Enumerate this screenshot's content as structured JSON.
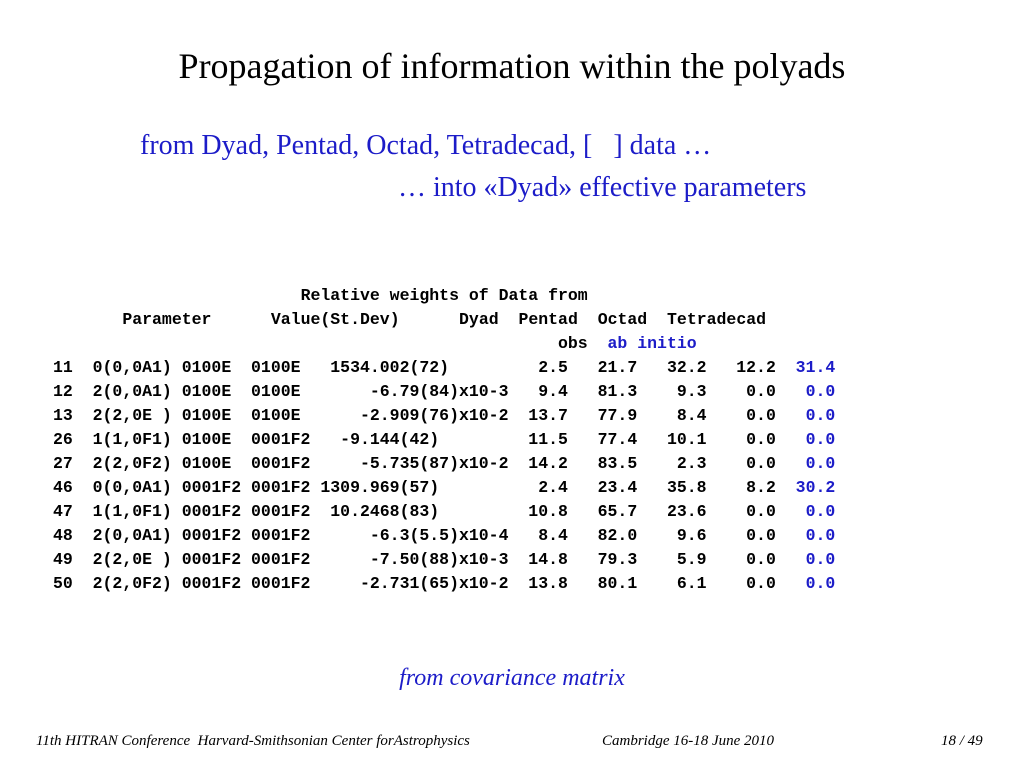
{
  "title": "Propagation of information within the polyads",
  "subtitle_line1": "from Dyad, Pentad, Octad, Tetradecad, [   ] data …",
  "subtitle_line2": "… into «Dyad» effective parameters",
  "table": {
    "header_line1": "Relative weights of Data from",
    "header_param": "Parameter",
    "header_value": "Value(St.Dev)",
    "columns": [
      "Dyad",
      "Pentad",
      "Octad",
      "Tetradecad"
    ],
    "obs_label": "obs",
    "abinitio_label": "ab initio",
    "rows": [
      {
        "num": "11",
        "param": "0(0,0A1) 0100E  0100E",
        "value": "1534.002(72)",
        "dyad": "2.5",
        "pentad": "21.7",
        "octad": "32.2",
        "obs": "12.2",
        "abinitio": "31.4"
      },
      {
        "num": "12",
        "param": "2(0,0A1) 0100E  0100E",
        "value": "-6.79(84)x10-3",
        "dyad": "9.4",
        "pentad": "81.3",
        "octad": "9.3",
        "obs": "0.0",
        "abinitio": "0.0"
      },
      {
        "num": "13",
        "param": "2(2,0E ) 0100E  0100E",
        "value": "-2.909(76)x10-2",
        "dyad": "13.7",
        "pentad": "77.9",
        "octad": "8.4",
        "obs": "0.0",
        "abinitio": "0.0"
      },
      {
        "num": "26",
        "param": "1(1,0F1) 0100E  0001F2",
        "value": "-9.144(42)",
        "dyad": "11.5",
        "pentad": "77.4",
        "octad": "10.1",
        "obs": "0.0",
        "abinitio": "0.0"
      },
      {
        "num": "27",
        "param": "2(2,0F2) 0100E  0001F2",
        "value": "-5.735(87)x10-2",
        "dyad": "14.2",
        "pentad": "83.5",
        "octad": "2.3",
        "obs": "0.0",
        "abinitio": "0.0"
      },
      {
        "num": "46",
        "param": "0(0,0A1) 0001F2 0001F2",
        "value": "1309.969(57)",
        "dyad": "2.4",
        "pentad": "23.4",
        "octad": "35.8",
        "obs": "8.2",
        "abinitio": "30.2"
      },
      {
        "num": "47",
        "param": "1(1,0F1) 0001F2 0001F2",
        "value": "10.2468(83)",
        "dyad": "10.8",
        "pentad": "65.7",
        "octad": "23.6",
        "obs": "0.0",
        "abinitio": "0.0"
      },
      {
        "num": "48",
        "param": "2(0,0A1) 0001F2 0001F2",
        "value": "-6.3(5.5)x10-4",
        "dyad": "8.4",
        "pentad": "82.0",
        "octad": "9.6",
        "obs": "0.0",
        "abinitio": "0.0"
      },
      {
        "num": "49",
        "param": "2(2,0E ) 0001F2 0001F2",
        "value": "-7.50(88)x10-3",
        "dyad": "14.8",
        "pentad": "79.3",
        "octad": "5.9",
        "obs": "0.0",
        "abinitio": "0.0"
      },
      {
        "num": "50",
        "param": "2(2,0F2) 0001F2 0001F2",
        "value": "-2.731(65)x10-2",
        "dyad": "13.8",
        "pentad": "80.1",
        "octad": "6.1",
        "obs": "0.0",
        "abinitio": "0.0"
      }
    ]
  },
  "note": "from covariance matrix",
  "footer": {
    "left": "11th HITRAN Conference  Harvard-Smithsonian Center forAstrophysics",
    "middle": "Cambridge 16-18 June 2010",
    "right": "18 / 49"
  },
  "colors": {
    "accent": "#1c1cc8",
    "text": "#000000",
    "background": "#ffffff"
  }
}
